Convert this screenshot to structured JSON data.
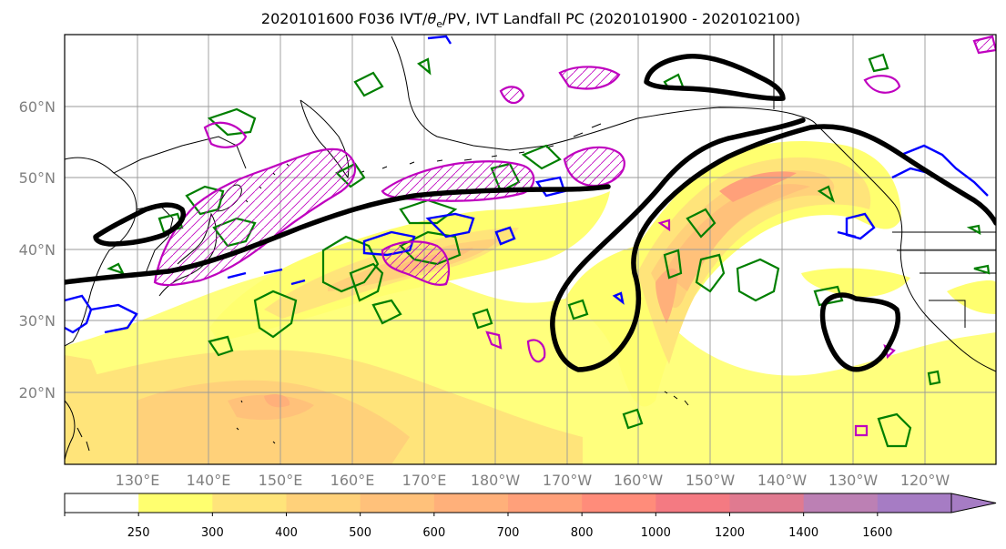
{
  "title": "2020101600 F036 IVT/θe/PV, IVT Landfall PC (2020101900 - 2020102100)",
  "title_parts": {
    "prefix": "2020101600 F036 IVT/",
    "theta": "θ",
    "theta_sub": "e",
    "suffix": "/PV, IVT Landfall PC (2020101900 - 2020102100)"
  },
  "lat_labels": [
    "60°N",
    "50°N",
    "40°N",
    "30°N",
    "20°N"
  ],
  "lon_labels": [
    "130°E",
    "140°E",
    "150°E",
    "160°E",
    "170°E",
    "180°W",
    "170°W",
    "160°W",
    "150°W",
    "140°W",
    "130°W",
    "120°W"
  ],
  "colorbar": {
    "ticks": [
      "250",
      "300",
      "400",
      "500",
      "600",
      "700",
      "800",
      "1000",
      "1200",
      "1400",
      "1600"
    ],
    "colors": [
      "#ffffff",
      "#ffff6f",
      "#ffe47a",
      "#ffd17a",
      "#ffc17a",
      "#ffb07a",
      "#ffa07a",
      "#ff8c7a",
      "#f47a82",
      "#e07a90",
      "#bc80b4",
      "#a67cc4"
    ],
    "extend": "max"
  },
  "colors": {
    "ivt_landfall_pc": "#000000",
    "theta_e": "#0000ff",
    "pv": "#bf00bf",
    "green_contour": "#007f00",
    "grid": "#999999"
  }
}
